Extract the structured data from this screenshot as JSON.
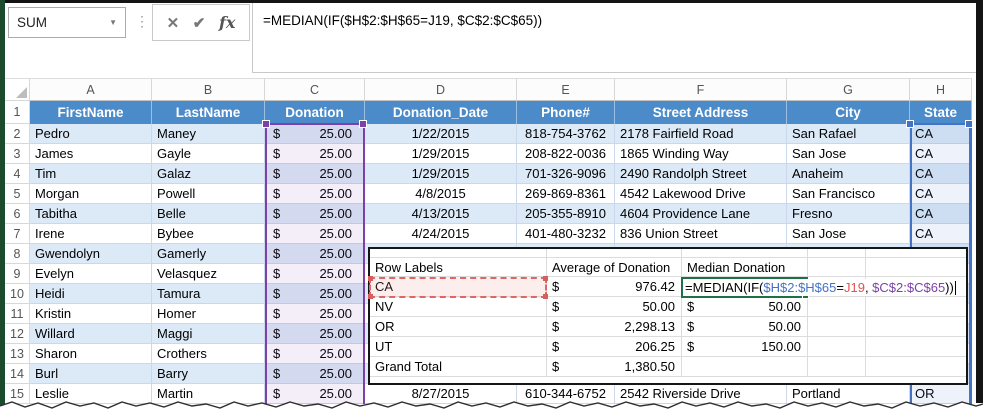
{
  "formula_bar": {
    "name_box_value": "SUM",
    "dropdown_arrow": "▼",
    "dots": "⋮",
    "cancel_label": "✕",
    "enter_label": "✔",
    "fx_label": "fx",
    "formula": "=MEDIAN(IF($H$2:$H$65=J19, $C$2:$C$65))"
  },
  "sheet": {
    "currency": "$",
    "column_letters": [
      "A",
      "B",
      "C",
      "D",
      "E",
      "F",
      "G",
      "H"
    ],
    "header_row_number": "1",
    "headers": [
      "FirstName",
      "LastName",
      "Donation",
      "Donation_Date",
      "Phone#",
      "Street Address",
      "City",
      "State"
    ],
    "rows": [
      {
        "n": "2",
        "first": "Pedro",
        "last": "Maney",
        "donation": "25.00",
        "date": "1/22/2015",
        "phone": "818-754-3762",
        "address": "2178 Fairfield Road",
        "city": "San Rafael",
        "state": "CA"
      },
      {
        "n": "3",
        "first": "James",
        "last": "Gayle",
        "donation": "25.00",
        "date": "1/29/2015",
        "phone": "208-822-0036",
        "address": "1865 Winding Way",
        "city": "San Jose",
        "state": "CA"
      },
      {
        "n": "4",
        "first": "Tim",
        "last": "Galaz",
        "donation": "25.00",
        "date": "1/29/2015",
        "phone": "701-326-9096",
        "address": "2490 Randolph Street",
        "city": "Anaheim",
        "state": "CA"
      },
      {
        "n": "5",
        "first": "Morgan",
        "last": "Powell",
        "donation": "25.00",
        "date": "4/8/2015",
        "phone": "269-869-8361",
        "address": "4542 Lakewood Drive",
        "city": "San Francisco",
        "state": "CA"
      },
      {
        "n": "6",
        "first": "Tabitha",
        "last": "Belle",
        "donation": "25.00",
        "date": "4/13/2015",
        "phone": "205-355-8910",
        "address": "4604 Providence Lane",
        "city": "Fresno",
        "state": "CA"
      },
      {
        "n": "7",
        "first": "Irene",
        "last": "Bybee",
        "donation": "25.00",
        "date": "4/24/2015",
        "phone": "401-480-3232",
        "address": "836 Union Street",
        "city": "San Jose",
        "state": "CA"
      },
      {
        "n": "8",
        "first": "Gwendolyn",
        "last": "Gamerly",
        "donation": "25.00",
        "date": "",
        "phone": "",
        "address": "",
        "city": "",
        "state": ""
      },
      {
        "n": "9",
        "first": "Evelyn",
        "last": "Velasquez",
        "donation": "25.00",
        "date": "",
        "phone": "",
        "address": "",
        "city": "",
        "state": ""
      },
      {
        "n": "10",
        "first": "Heidi",
        "last": "Tamura",
        "donation": "25.00",
        "date": "",
        "phone": "",
        "address": "",
        "city": "",
        "state": ""
      },
      {
        "n": "11",
        "first": "Kristin",
        "last": "Homer",
        "donation": "25.00",
        "date": "",
        "phone": "",
        "address": "",
        "city": "",
        "state": ""
      },
      {
        "n": "12",
        "first": "Willard",
        "last": "Maggi",
        "donation": "25.00",
        "date": "",
        "phone": "",
        "address": "",
        "city": "",
        "state": ""
      },
      {
        "n": "13",
        "first": "Sharon",
        "last": "Crothers",
        "donation": "25.00",
        "date": "",
        "phone": "",
        "address": "",
        "city": "",
        "state": ""
      },
      {
        "n": "14",
        "first": "Burl",
        "last": "Barry",
        "donation": "25.00",
        "date": "",
        "phone": "",
        "address": "",
        "city": "",
        "state": ""
      },
      {
        "n": "15",
        "first": "Leslie",
        "last": "Martin",
        "donation": "25.00",
        "date": "8/27/2015",
        "phone": "610-344-6752",
        "address": "2542 Riverside Drive",
        "city": "Portland",
        "state": "OR"
      }
    ]
  },
  "pivot": {
    "headers": [
      "Row Labels",
      "Average of Donation",
      "Median Donation"
    ],
    "rows": [
      {
        "label": "CA",
        "avg": "976.42",
        "median": ""
      },
      {
        "label": "NV",
        "avg": "50.00",
        "median": "50.00"
      },
      {
        "label": "OR",
        "avg": "2,298.13",
        "median": "50.00"
      },
      {
        "label": "UT",
        "avg": "206.25",
        "median": "150.00"
      },
      {
        "label": "Grand Total",
        "avg": "1,380.50",
        "median": ""
      }
    ],
    "formula_parts": [
      {
        "text": "=MEDIAN(IF(",
        "color": "#000000"
      },
      {
        "text": "$H$2:$H$65",
        "color": "#4472C4"
      },
      {
        "text": "=",
        "color": "#000000"
      },
      {
        "text": "J19",
        "color": "#E05252"
      },
      {
        "text": ", ",
        "color": "#000000"
      },
      {
        "text": "$C$2:$C$65",
        "color": "#7A42A8"
      },
      {
        "text": "))",
        "color": "#000000"
      }
    ]
  },
  "colors": {
    "table_header_fill": "#4C8BC9",
    "banded_row_fill": "#DCE9F7",
    "range_c_border": "#7A42A8",
    "range_h_border": "#4472C4",
    "ref_cell_border": "#E06666",
    "formula_cell_border": "#1E7145",
    "frame_left_green": "#1C4A2C",
    "frame_dark": "#141414"
  }
}
